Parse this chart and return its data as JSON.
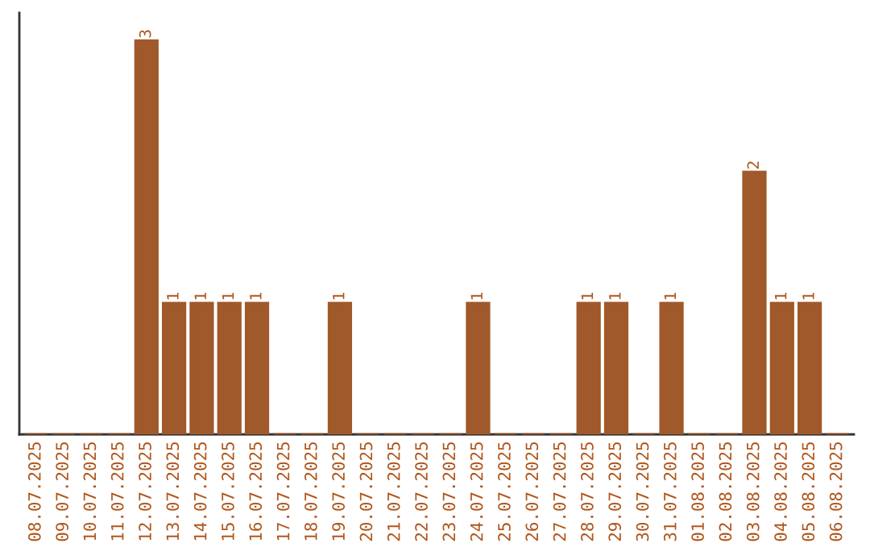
{
  "chart_data": {
    "type": "bar",
    "categories": [
      "08.07.2025",
      "09.07.2025",
      "10.07.2025",
      "11.07.2025",
      "12.07.2025",
      "13.07.2025",
      "14.07.2025",
      "15.07.2025",
      "16.07.2025",
      "17.07.2025",
      "18.07.2025",
      "19.07.2025",
      "20.07.2025",
      "21.07.2025",
      "22.07.2025",
      "23.07.2025",
      "24.07.2025",
      "25.07.2025",
      "26.07.2025",
      "27.07.2025",
      "28.07.2025",
      "29.07.2025",
      "30.07.2025",
      "31.07.2025",
      "01.08.2025",
      "02.08.2025",
      "03.08.2025",
      "04.08.2025",
      "05.08.2025",
      "06.08.2025"
    ],
    "values": [
      0,
      0,
      0,
      0,
      3,
      1,
      1,
      1,
      1,
      0,
      0,
      1,
      0,
      0,
      0,
      0,
      1,
      0,
      0,
      0,
      1,
      1,
      0,
      1,
      0,
      0,
      2,
      1,
      1,
      0
    ],
    "value_labels": [
      null,
      null,
      null,
      null,
      "3",
      "1",
      "1",
      "1",
      "1",
      null,
      null,
      "1",
      null,
      null,
      null,
      null,
      "1",
      null,
      null,
      null,
      "1",
      "1",
      null,
      "1",
      null,
      null,
      "2",
      "1",
      "1",
      null
    ],
    "color": "#a0592a",
    "tick_labels": "x",
    "grid": false
  }
}
